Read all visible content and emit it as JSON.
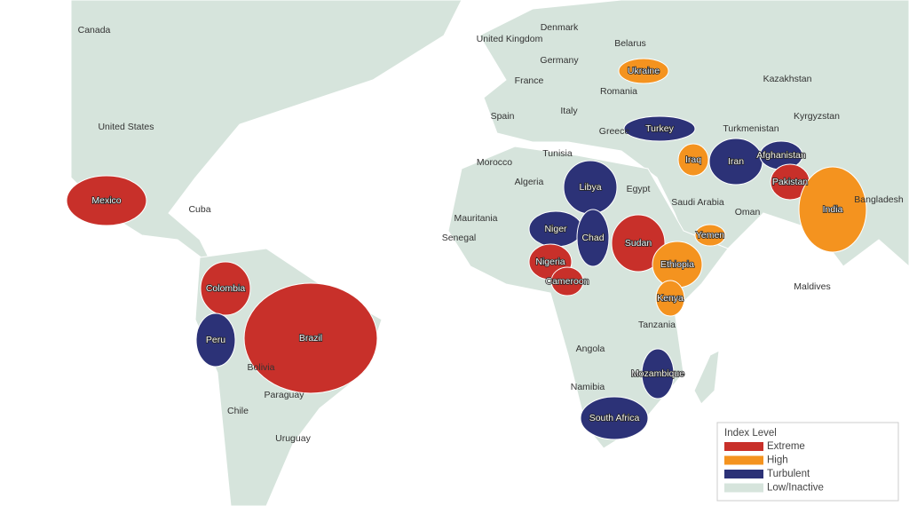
{
  "map": {
    "countries": [
      {
        "label": "Canada",
        "level": "Low/Inactive"
      },
      {
        "label": "United States",
        "level": "Low/Inactive"
      },
      {
        "label": "Mexico",
        "level": "Extreme"
      },
      {
        "label": "Cuba",
        "level": "Low/Inactive"
      },
      {
        "label": "Colombia",
        "level": "Extreme"
      },
      {
        "label": "Peru",
        "level": "Turbulent"
      },
      {
        "label": "Brazil",
        "level": "Extreme"
      },
      {
        "label": "Bolivia",
        "level": "Low/Inactive"
      },
      {
        "label": "Paraguay",
        "level": "Low/Inactive"
      },
      {
        "label": "Chile",
        "level": "Low/Inactive"
      },
      {
        "label": "Uruguay",
        "level": "Low/Inactive"
      },
      {
        "label": "United Kingdom",
        "level": "Low/Inactive"
      },
      {
        "label": "Denmark",
        "level": "Low/Inactive"
      },
      {
        "label": "Belarus",
        "level": "Low/Inactive"
      },
      {
        "label": "Ukraine",
        "level": "High"
      },
      {
        "label": "Germany",
        "level": "Low/Inactive"
      },
      {
        "label": "France",
        "level": "Low/Inactive"
      },
      {
        "label": "Romania",
        "level": "Low/Inactive"
      },
      {
        "label": "Kazakhstan",
        "level": "Low/Inactive"
      },
      {
        "label": "Spain",
        "level": "Low/Inactive"
      },
      {
        "label": "Italy",
        "level": "Low/Inactive"
      },
      {
        "label": "Kyrgyzstan",
        "level": "Low/Inactive"
      },
      {
        "label": "Greece",
        "level": "Low/Inactive"
      },
      {
        "label": "Turkey",
        "level": "Turbulent"
      },
      {
        "label": "Turkmenistan",
        "level": "Low/Inactive"
      },
      {
        "label": "Tunisia",
        "level": "Low/Inactive"
      },
      {
        "label": "Morocco",
        "level": "Low/Inactive"
      },
      {
        "label": "Iraq",
        "level": "High"
      },
      {
        "label": "Iran",
        "level": "Turbulent"
      },
      {
        "label": "Afghanistan",
        "level": "Turbulent"
      },
      {
        "label": "Algeria",
        "level": "Low/Inactive"
      },
      {
        "label": "Libya",
        "level": "Turbulent"
      },
      {
        "label": "Egypt",
        "level": "Low/Inactive"
      },
      {
        "label": "Pakistan",
        "level": "Extreme"
      },
      {
        "label": "Saudi Arabia",
        "level": "Low/Inactive"
      },
      {
        "label": "Oman",
        "level": "Low/Inactive"
      },
      {
        "label": "India",
        "level": "High"
      },
      {
        "label": "Bangladesh",
        "level": "Low/Inactive"
      },
      {
        "label": "Mauritania",
        "level": "Low/Inactive"
      },
      {
        "label": "Senegal",
        "level": "Low/Inactive"
      },
      {
        "label": "Niger",
        "level": "Turbulent"
      },
      {
        "label": "Chad",
        "level": "Turbulent"
      },
      {
        "label": "Sudan",
        "level": "Extreme"
      },
      {
        "label": "Yemen",
        "level": "High"
      },
      {
        "label": "Nigeria",
        "level": "Extreme"
      },
      {
        "label": "Ethiopia",
        "level": "High"
      },
      {
        "label": "Cameroon",
        "level": "Extreme"
      },
      {
        "label": "Maldives",
        "level": "Low/Inactive"
      },
      {
        "label": "Kenya",
        "level": "High"
      },
      {
        "label": "Tanzania",
        "level": "Low/Inactive"
      },
      {
        "label": "Angola",
        "level": "Low/Inactive"
      },
      {
        "label": "Mozambique",
        "level": "Turbulent"
      },
      {
        "label": "Namibia",
        "level": "Low/Inactive"
      },
      {
        "label": "South Africa",
        "level": "Turbulent"
      }
    ],
    "legend": {
      "title": "Index Level",
      "items": [
        {
          "label": "Extreme",
          "color": "#c8302a"
        },
        {
          "label": "High",
          "color": "#f4931f"
        },
        {
          "label": "Turbulent",
          "color": "#2c3277"
        },
        {
          "label": "Low/Inactive",
          "color": "#d6e4dc"
        }
      ]
    }
  }
}
